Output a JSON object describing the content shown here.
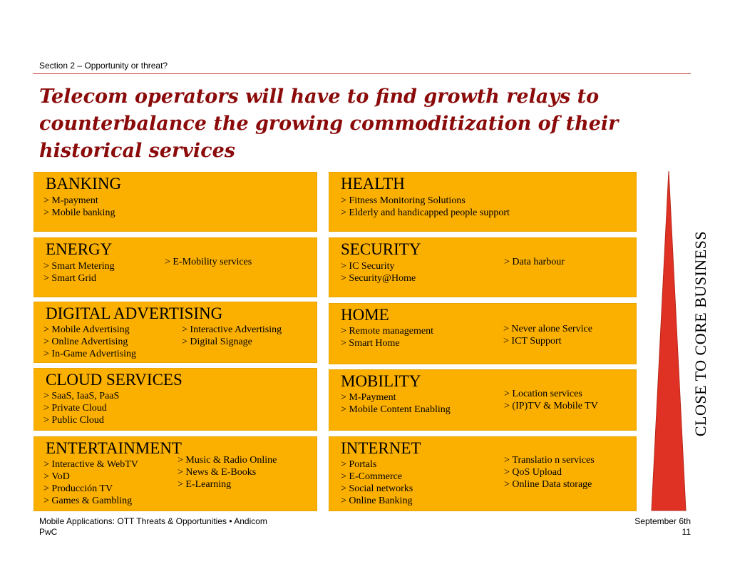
{
  "header": {
    "section": "Section 2 – Opportunity or threat?",
    "title": "Telecom operators will have to find growth relays to counterbalance the growing commoditization of their historical services"
  },
  "boxes": {
    "banking": {
      "title": "BANKING",
      "col1": [
        "M-payment",
        "Mobile banking"
      ]
    },
    "health": {
      "title": "HEALTH",
      "col1": [
        "Fitness Monitoring Solutions",
        "Elderly and handicapped people support"
      ]
    },
    "energy": {
      "title": "ENERGY",
      "col1": [
        "Smart Metering",
        "Smart Grid"
      ],
      "col2": [
        "E-Mobility services"
      ]
    },
    "security": {
      "title": "SECURITY",
      "col1": [
        "IC Security",
        "Security@Home"
      ],
      "col2": [
        "Data harbour"
      ]
    },
    "digital_advertising": {
      "title": "DIGITAL ADVERTISING",
      "col1": [
        "Mobile Advertising",
        "Online Advertising",
        "In-Game Advertising"
      ],
      "col2": [
        "Interactive Advertising",
        "Digital Signage"
      ]
    },
    "home": {
      "title": "HOME",
      "col1": [
        "Remote management",
        "Smart Home"
      ],
      "col2": [
        "Never alone Service",
        "ICT Support"
      ]
    },
    "cloud_services": {
      "title": "CLOUD SERVICES",
      "col1": [
        "SaaS, IaaS, PaaS",
        "Private Cloud",
        "Public Cloud"
      ]
    },
    "mobility": {
      "title": "MOBILITY",
      "col1": [
        "M-Payment",
        "Mobile Content Enabling"
      ],
      "col2": [
        "Location services",
        "(IP)TV & Mobile TV"
      ]
    },
    "entertainment": {
      "title": "ENTERTAINMENT",
      "col1": [
        "Interactive & WebTV",
        "VoD",
        "Producción TV",
        "Games & Gambling"
      ],
      "col2": [
        "Music & Radio Online",
        "News & E-Books",
        "E-Learning"
      ]
    },
    "internet": {
      "title": "INTERNET",
      "col1": [
        "Portals",
        "E-Commerce",
        "Social networks",
        "Online Banking"
      ],
      "col2": [
        "Translatio n services",
        "QoS Upload",
        "Online Data storage"
      ]
    }
  },
  "side_label": "CLOSE TO CORE BUSINESS",
  "colors": {
    "box": "#fbb000",
    "title": "#8b0a0a",
    "triangle": "#e03224",
    "rule": "#c0392b"
  },
  "footer": {
    "left_line1": "Mobile Applications: OTT Threats & Opportunities • Andicom",
    "left_line2": "PwC",
    "date": "September 6th",
    "page": "11"
  }
}
